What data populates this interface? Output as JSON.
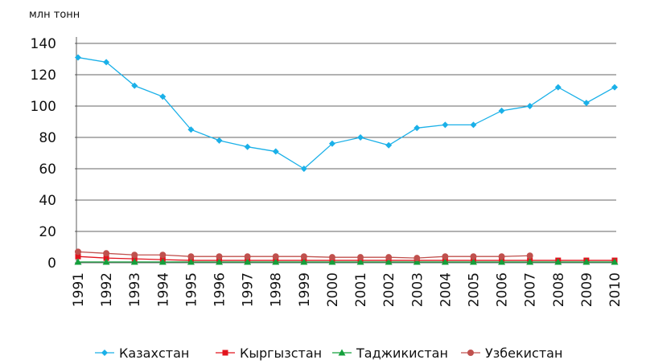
{
  "chart_data": {
    "type": "line",
    "y_label": "млн тонн",
    "categories": [
      "1991",
      "1992",
      "1993",
      "1994",
      "1995",
      "1996",
      "1997",
      "1998",
      "1999",
      "2000",
      "2001",
      "2002",
      "2003",
      "2004",
      "2005",
      "2006",
      "2007",
      "2008",
      "2009",
      "2010"
    ],
    "series": [
      {
        "name": "Казахстан",
        "color": "#1ab0e8",
        "marker": "diamond",
        "values": [
          131,
          128,
          113,
          106,
          85,
          78,
          74,
          71,
          60,
          76,
          80,
          75,
          86,
          88,
          88,
          97,
          100,
          112,
          102,
          112
        ]
      },
      {
        "name": "Кыргызстан",
        "color": "#e2141e",
        "marker": "square",
        "values": [
          4,
          3,
          2.5,
          2,
          1.5,
          1.5,
          1.5,
          1.5,
          1.5,
          1.5,
          1.5,
          1.5,
          1.5,
          1.5,
          1.5,
          1.5,
          1.5,
          1.5,
          1.5,
          1.5
        ]
      },
      {
        "name": "Таджикистан",
        "color": "#14a03c",
        "marker": "triangle",
        "values": [
          0.5,
          0.5,
          0.5,
          0.5,
          0.5,
          0.5,
          0.5,
          0.5,
          0.5,
          0.5,
          0.5,
          0.5,
          0.5,
          0.5,
          0.5,
          0.5,
          0.5,
          0.5,
          0.5,
          0.5
        ]
      },
      {
        "name": "Узбекистан",
        "color": "#c0504d",
        "marker": "circle",
        "values": [
          7,
          6,
          5,
          5,
          4,
          4,
          4,
          4,
          4,
          3.5,
          3.5,
          3.5,
          3,
          4,
          4,
          4,
          4.5,
          null,
          null,
          null
        ]
      }
    ],
    "ylim": [
      0,
      140
    ],
    "yticks": [
      0,
      20,
      40,
      60,
      80,
      100,
      120,
      140
    ],
    "grid": true,
    "legend": "bottom"
  }
}
